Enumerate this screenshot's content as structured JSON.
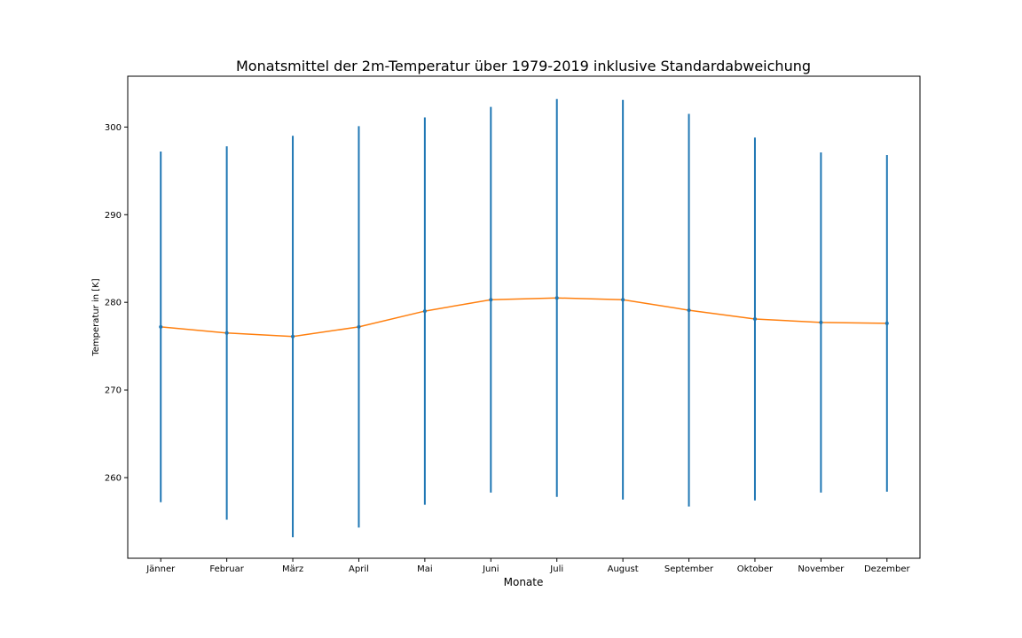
{
  "chart_data": {
    "type": "line",
    "title": "Monatsmittel der 2m-Temperatur über 1979-2019 inklusive Standardabweichung",
    "xlabel": "Monate",
    "ylabel": "Temperatur in [K]",
    "categories": [
      "Jänner",
      "Februar",
      "März",
      "April",
      "Mai",
      "Juni",
      "Juli",
      "August",
      "September",
      "Oktober",
      "November",
      "Dezember"
    ],
    "series": [
      {
        "values": [
          277.2,
          276.5,
          276.1,
          277.2,
          279.0,
          280.3,
          280.5,
          280.3,
          279.1,
          278.1,
          277.7,
          277.6
        ],
        "error": [
          20.0,
          21.3,
          22.9,
          22.9,
          22.1,
          22.0,
          22.7,
          22.8,
          22.4,
          20.7,
          19.4,
          19.2
        ],
        "line_color": "#ff7f0e",
        "errorbar_color": "#1f77b4"
      }
    ],
    "ylim": [
      250.8,
      305.8
    ],
    "yticks": [
      260,
      270,
      280,
      290,
      300
    ],
    "grid": false,
    "legend": false
  }
}
